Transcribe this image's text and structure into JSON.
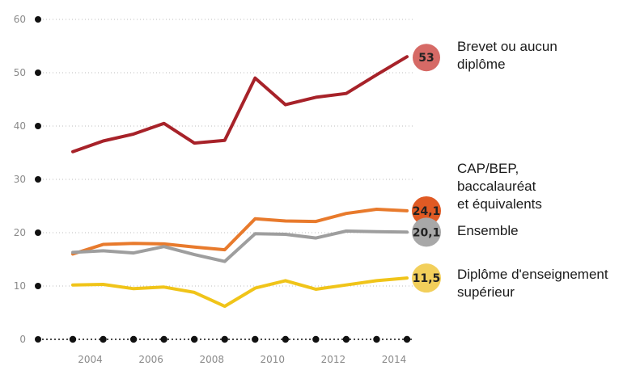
{
  "chart_data": {
    "type": "line",
    "title": "",
    "xlabel": "",
    "ylabel": "",
    "x": [
      2003,
      2004,
      2005,
      2006,
      2007,
      2008,
      2009,
      2010,
      2011,
      2012,
      2013,
      2014
    ],
    "x_tick_labels": [
      "2004",
      "2006",
      "2008",
      "2010",
      "2012",
      "2014"
    ],
    "x_tick_values": [
      2004,
      2006,
      2008,
      2010,
      2012,
      2014
    ],
    "y_tick_labels": [
      "0",
      "10",
      "20",
      "30",
      "40",
      "50",
      "60"
    ],
    "ylim": [
      0,
      60
    ],
    "xlim": [
      2003,
      2014
    ],
    "grid": "dotted horizontal",
    "series": [
      {
        "name": "Brevet ou aucun diplôme",
        "label_lines": [
          "Brevet ou aucun",
          "diplôme"
        ],
        "color": "#a72229",
        "end_color": "#d66a66",
        "end_label": "53",
        "values": [
          35.2,
          37.2,
          38.5,
          40.5,
          36.8,
          37.3,
          49,
          44,
          45.4,
          46.1,
          49.6,
          53
        ]
      },
      {
        "name": "CAP/BEP, baccalauréat et équivalents",
        "label_lines": [
          "CAP/BEP,",
          "baccalauréat",
          "et équivalents"
        ],
        "color": "#e87a2c",
        "end_color": "#e05a24",
        "end_label": "24,1",
        "values": [
          16,
          17.8,
          18,
          17.9,
          17.3,
          16.8,
          22.6,
          22.2,
          22.1,
          23.6,
          24.4,
          24.1
        ]
      },
      {
        "name": "Ensemble",
        "label_lines": [
          "Ensemble"
        ],
        "color": "#9e9e9e",
        "end_color": "#a8a8a8",
        "end_label": "20,1",
        "values": [
          16.3,
          16.6,
          16.2,
          17.4,
          15.9,
          14.6,
          19.8,
          19.7,
          19,
          20.3,
          20.2,
          20.1
        ]
      },
      {
        "name": "Diplôme d'enseignement supérieur",
        "label_lines": [
          "Diplôme d'enseignement",
          "supérieur"
        ],
        "color": "#f0c419",
        "end_color": "#f2cf5b",
        "end_label": "11,5",
        "values": [
          10.2,
          10.3,
          9.5,
          9.8,
          8.8,
          6.2,
          9.6,
          11,
          9.4,
          10.2,
          11,
          11.5
        ]
      }
    ]
  }
}
